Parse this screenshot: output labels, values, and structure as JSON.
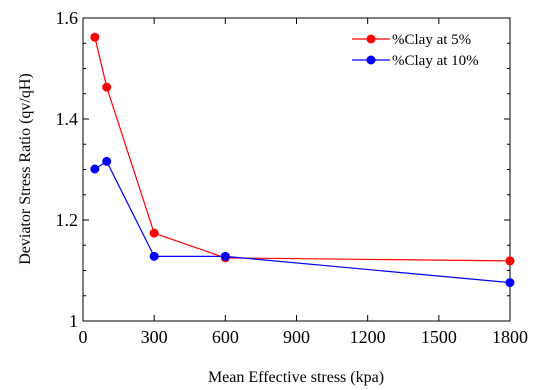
{
  "chart_data": {
    "type": "line",
    "title": "",
    "xlabel": "Mean Effective stress (kpa)",
    "ylabel": "Deviator Stress Ratio (qv/qH)",
    "xlim": [
      0,
      1800
    ],
    "ylim": [
      1.0,
      1.6
    ],
    "x_scale": "piecewise-linear",
    "xticks": [
      0,
      300,
      600,
      900,
      1200,
      1500,
      1800
    ],
    "xtick_labels": [
      "0",
      "300",
      "600",
      "900",
      "1200",
      "1500",
      "1800"
    ],
    "xtick_mapping": [
      [
        0,
        0
      ],
      [
        300,
        300
      ],
      [
        600,
        600
      ],
      [
        900,
        900
      ],
      [
        1200,
        1200
      ],
      [
        1500,
        1500
      ],
      [
        1800,
        1800
      ]
    ],
    "yticks": [
      1.0,
      1.2,
      1.4,
      1.6
    ],
    "ytick_labels": [
      "1",
      "1.2",
      "1.4",
      "1.6"
    ],
    "grid": false,
    "legend_position": "top-right",
    "series": [
      {
        "name": "%Clay at 5%",
        "color": "#ff0000",
        "marker": "circle",
        "x": [
          50,
          100,
          300,
          600,
          1800
        ],
        "y": [
          1.562,
          1.463,
          1.174,
          1.125,
          1.119
        ]
      },
      {
        "name": "%Clay at 10%",
        "color": "#0000ff",
        "marker": "circle",
        "x": [
          50,
          100,
          300,
          600,
          1800
        ],
        "y": [
          1.301,
          1.316,
          1.128,
          1.128,
          1.076
        ]
      }
    ]
  }
}
